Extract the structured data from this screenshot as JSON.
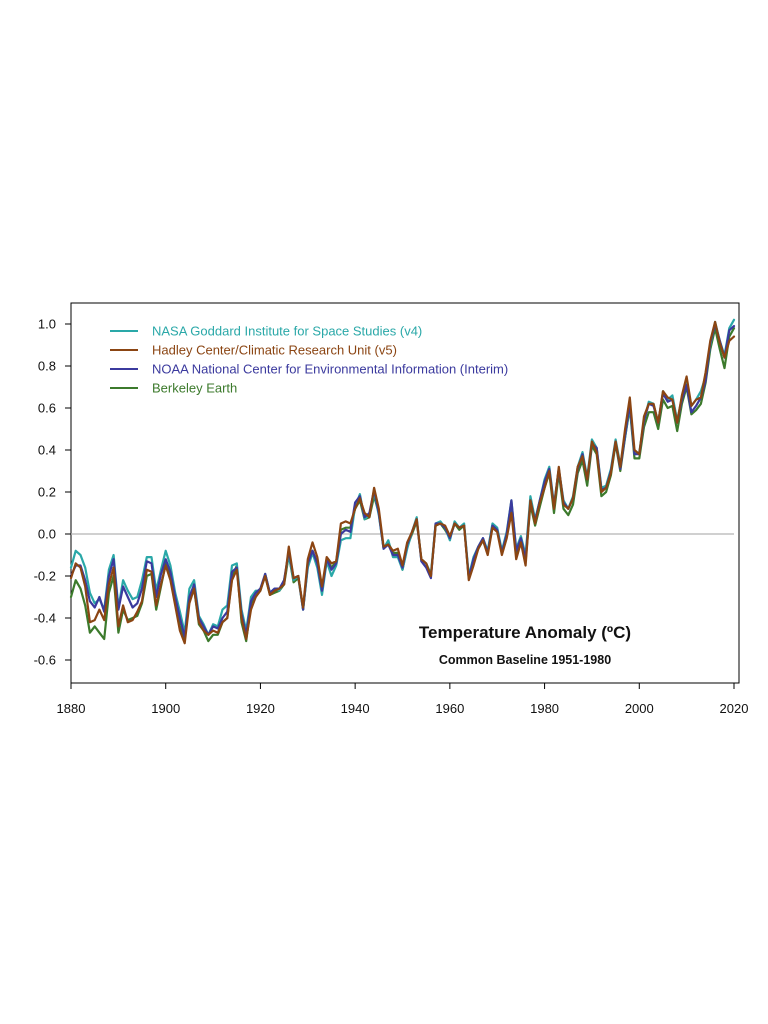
{
  "chart_data": {
    "type": "line",
    "title": "Temperature Anomaly (ºC)",
    "subtitle": "Common Baseline 1951-1980",
    "xlabel": "",
    "ylabel": "",
    "xlim": [
      1880,
      2020
    ],
    "ylim": [
      -0.7,
      1.1
    ],
    "x_ticks": [
      1880,
      1900,
      1920,
      1940,
      1960,
      1980,
      2000,
      2020
    ],
    "y_ticks": [
      1.0,
      0.8,
      0.6,
      0.4,
      0.2,
      0.0,
      -0.2,
      -0.4,
      -0.6
    ],
    "y_tick_labels": [
      "1.0",
      "0.8",
      "0.6",
      "0.4",
      "0.2",
      "0.0",
      "-0.2",
      "-0.4",
      "-0.6"
    ],
    "grid": false,
    "zero_line": true,
    "legend_position": "top-left",
    "x": [
      1880,
      1881,
      1882,
      1883,
      1884,
      1885,
      1886,
      1887,
      1888,
      1889,
      1890,
      1891,
      1892,
      1893,
      1894,
      1895,
      1896,
      1897,
      1898,
      1899,
      1900,
      1901,
      1902,
      1903,
      1904,
      1905,
      1906,
      1907,
      1908,
      1909,
      1910,
      1911,
      1912,
      1913,
      1914,
      1915,
      1916,
      1917,
      1918,
      1919,
      1920,
      1921,
      1922,
      1923,
      1924,
      1925,
      1926,
      1927,
      1928,
      1929,
      1930,
      1931,
      1932,
      1933,
      1934,
      1935,
      1936,
      1937,
      1938,
      1939,
      1940,
      1941,
      1942,
      1943,
      1944,
      1945,
      1946,
      1947,
      1948,
      1949,
      1950,
      1951,
      1952,
      1953,
      1954,
      1955,
      1956,
      1957,
      1958,
      1959,
      1960,
      1961,
      1962,
      1963,
      1964,
      1965,
      1966,
      1967,
      1968,
      1969,
      1970,
      1971,
      1972,
      1973,
      1974,
      1975,
      1976,
      1977,
      1978,
      1979,
      1980,
      1981,
      1982,
      1983,
      1984,
      1985,
      1986,
      1987,
      1988,
      1989,
      1990,
      1991,
      1992,
      1993,
      1994,
      1995,
      1996,
      1997,
      1998,
      1999,
      2000,
      2001,
      2002,
      2003,
      2004,
      2005,
      2006,
      2007,
      2008,
      2009,
      2010,
      2011,
      2012,
      2013,
      2014,
      2015,
      2016,
      2017,
      2018,
      2019,
      2020
    ],
    "series": [
      {
        "name": "NASA Goddard Institute for Space Studies (v4)",
        "color": "#2aa8a8",
        "values": [
          -0.16,
          -0.08,
          -0.1,
          -0.16,
          -0.28,
          -0.33,
          -0.31,
          -0.36,
          -0.17,
          -0.1,
          -0.35,
          -0.22,
          -0.27,
          -0.31,
          -0.3,
          -0.22,
          -0.11,
          -0.11,
          -0.27,
          -0.17,
          -0.08,
          -0.15,
          -0.28,
          -0.37,
          -0.47,
          -0.26,
          -0.22,
          -0.39,
          -0.43,
          -0.48,
          -0.43,
          -0.44,
          -0.36,
          -0.34,
          -0.15,
          -0.14,
          -0.36,
          -0.46,
          -0.3,
          -0.27,
          -0.27,
          -0.19,
          -0.28,
          -0.26,
          -0.27,
          -0.22,
          -0.1,
          -0.22,
          -0.2,
          -0.36,
          -0.16,
          -0.09,
          -0.16,
          -0.29,
          -0.13,
          -0.2,
          -0.15,
          -0.03,
          -0.02,
          -0.02,
          0.13,
          0.19,
          0.07,
          0.09,
          0.2,
          0.09,
          -0.07,
          -0.03,
          -0.11,
          -0.11,
          -0.17,
          -0.07,
          0.01,
          0.08,
          -0.13,
          -0.14,
          -0.19,
          0.05,
          0.06,
          0.03,
          -0.03,
          0.06,
          0.03,
          0.05,
          -0.2,
          -0.11,
          -0.06,
          -0.02,
          -0.08,
          0.05,
          0.03,
          -0.08,
          0.01,
          0.16,
          -0.07,
          -0.01,
          -0.1,
          0.18,
          0.07,
          0.16,
          0.26,
          0.32,
          0.14,
          0.31,
          0.16,
          0.12,
          0.18,
          0.32,
          0.39,
          0.27,
          0.45,
          0.41,
          0.22,
          0.23,
          0.31,
          0.45,
          0.33,
          0.46,
          0.61,
          0.38,
          0.39,
          0.54,
          0.63,
          0.62,
          0.53,
          0.68,
          0.64,
          0.66,
          0.54,
          0.65,
          0.72,
          0.61,
          0.64,
          0.68,
          0.75,
          0.9,
          1.01,
          0.92,
          0.85,
          0.98,
          1.02
        ]
      },
      {
        "name": "Hadley Center/Climatic Research Unit (v5)",
        "color": "#8b4513",
        "values": [
          -0.21,
          -0.14,
          -0.16,
          -0.25,
          -0.42,
          -0.41,
          -0.36,
          -0.41,
          -0.24,
          -0.16,
          -0.44,
          -0.34,
          -0.42,
          -0.41,
          -0.37,
          -0.32,
          -0.17,
          -0.18,
          -0.34,
          -0.24,
          -0.15,
          -0.22,
          -0.34,
          -0.46,
          -0.52,
          -0.33,
          -0.26,
          -0.42,
          -0.46,
          -0.48,
          -0.46,
          -0.47,
          -0.42,
          -0.4,
          -0.22,
          -0.17,
          -0.4,
          -0.5,
          -0.36,
          -0.3,
          -0.27,
          -0.2,
          -0.29,
          -0.27,
          -0.26,
          -0.24,
          -0.06,
          -0.21,
          -0.2,
          -0.35,
          -0.12,
          -0.04,
          -0.11,
          -0.25,
          -0.11,
          -0.14,
          -0.13,
          0.05,
          0.06,
          0.05,
          0.12,
          0.17,
          0.1,
          0.08,
          0.22,
          0.12,
          -0.06,
          -0.05,
          -0.08,
          -0.07,
          -0.15,
          -0.04,
          0.01,
          0.07,
          -0.12,
          -0.14,
          -0.2,
          0.04,
          0.05,
          0.04,
          -0.01,
          0.05,
          0.03,
          0.04,
          -0.22,
          -0.15,
          -0.07,
          -0.03,
          -0.1,
          0.03,
          0.01,
          -0.1,
          -0.02,
          0.1,
          -0.12,
          -0.04,
          -0.15,
          0.16,
          0.05,
          0.15,
          0.22,
          0.3,
          0.12,
          0.32,
          0.14,
          0.12,
          0.17,
          0.32,
          0.37,
          0.26,
          0.44,
          0.39,
          0.2,
          0.22,
          0.29,
          0.44,
          0.32,
          0.5,
          0.65,
          0.4,
          0.38,
          0.56,
          0.62,
          0.62,
          0.53,
          0.68,
          0.65,
          0.64,
          0.53,
          0.66,
          0.75,
          0.61,
          0.64,
          0.65,
          0.77,
          0.92,
          1.01,
          0.91,
          0.84,
          0.92,
          0.94
        ]
      },
      {
        "name": "NOAA National Center for Environmental Information (Interim)",
        "color": "#3b3a9e",
        "values": [
          -0.2,
          -0.15,
          -0.15,
          -0.22,
          -0.32,
          -0.35,
          -0.3,
          -0.37,
          -0.2,
          -0.12,
          -0.36,
          -0.25,
          -0.3,
          -0.35,
          -0.33,
          -0.26,
          -0.13,
          -0.14,
          -0.3,
          -0.19,
          -0.12,
          -0.18,
          -0.3,
          -0.4,
          -0.49,
          -0.3,
          -0.24,
          -0.4,
          -0.44,
          -0.48,
          -0.44,
          -0.45,
          -0.4,
          -0.37,
          -0.18,
          -0.16,
          -0.38,
          -0.48,
          -0.32,
          -0.28,
          -0.26,
          -0.19,
          -0.28,
          -0.26,
          -0.26,
          -0.22,
          -0.08,
          -0.21,
          -0.2,
          -0.36,
          -0.14,
          -0.08,
          -0.14,
          -0.27,
          -0.12,
          -0.17,
          -0.14,
          0.0,
          0.02,
          0.01,
          0.15,
          0.18,
          0.08,
          0.1,
          0.21,
          0.1,
          -0.07,
          -0.05,
          -0.1,
          -0.1,
          -0.16,
          -0.05,
          0.01,
          0.07,
          -0.13,
          -0.16,
          -0.21,
          0.05,
          0.05,
          0.03,
          -0.02,
          0.05,
          0.03,
          0.04,
          -0.21,
          -0.12,
          -0.06,
          -0.02,
          -0.09,
          0.04,
          0.02,
          -0.09,
          0.0,
          0.16,
          -0.08,
          -0.02,
          -0.12,
          0.16,
          0.06,
          0.16,
          0.25,
          0.31,
          0.13,
          0.31,
          0.15,
          0.12,
          0.17,
          0.31,
          0.38,
          0.26,
          0.43,
          0.41,
          0.21,
          0.22,
          0.3,
          0.44,
          0.31,
          0.47,
          0.62,
          0.38,
          0.38,
          0.54,
          0.62,
          0.61,
          0.53,
          0.67,
          0.63,
          0.64,
          0.53,
          0.64,
          0.71,
          0.58,
          0.61,
          0.65,
          0.73,
          0.91,
          1.0,
          0.92,
          0.84,
          0.97,
          0.99
        ]
      },
      {
        "name": "Berkeley Earth",
        "color": "#3c7a2c",
        "values": [
          -0.3,
          -0.22,
          -0.26,
          -0.34,
          -0.47,
          -0.44,
          -0.47,
          -0.5,
          -0.28,
          -0.2,
          -0.47,
          -0.36,
          -0.41,
          -0.4,
          -0.39,
          -0.33,
          -0.2,
          -0.19,
          -0.36,
          -0.25,
          -0.14,
          -0.2,
          -0.32,
          -0.44,
          -0.5,
          -0.31,
          -0.26,
          -0.43,
          -0.46,
          -0.51,
          -0.48,
          -0.48,
          -0.42,
          -0.4,
          -0.21,
          -0.15,
          -0.42,
          -0.51,
          -0.33,
          -0.3,
          -0.26,
          -0.2,
          -0.29,
          -0.28,
          -0.27,
          -0.24,
          -0.1,
          -0.23,
          -0.21,
          -0.36,
          -0.15,
          -0.08,
          -0.14,
          -0.27,
          -0.12,
          -0.16,
          -0.13,
          0.02,
          0.03,
          0.03,
          0.12,
          0.16,
          0.07,
          0.08,
          0.18,
          0.1,
          -0.07,
          -0.04,
          -0.09,
          -0.09,
          -0.17,
          -0.06,
          0.0,
          0.06,
          -0.12,
          -0.14,
          -0.2,
          0.04,
          0.05,
          0.02,
          -0.02,
          0.05,
          0.02,
          0.04,
          -0.21,
          -0.13,
          -0.07,
          -0.03,
          -0.09,
          0.04,
          0.02,
          -0.09,
          -0.01,
          0.14,
          -0.1,
          -0.03,
          -0.13,
          0.14,
          0.04,
          0.13,
          0.22,
          0.29,
          0.1,
          0.29,
          0.12,
          0.09,
          0.14,
          0.29,
          0.35,
          0.23,
          0.42,
          0.38,
          0.18,
          0.2,
          0.28,
          0.43,
          0.3,
          0.46,
          0.6,
          0.36,
          0.36,
          0.51,
          0.58,
          0.58,
          0.5,
          0.64,
          0.6,
          0.61,
          0.49,
          0.62,
          0.7,
          0.57,
          0.59,
          0.62,
          0.72,
          0.88,
          0.98,
          0.88,
          0.79,
          0.94,
          0.98
        ]
      }
    ]
  }
}
